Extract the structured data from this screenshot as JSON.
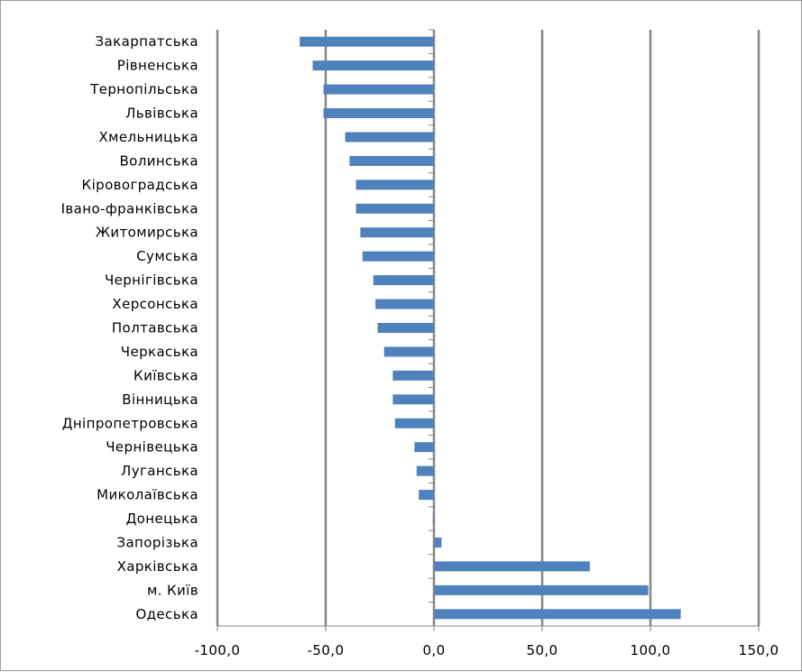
{
  "chart_data": {
    "type": "bar",
    "orientation": "horizontal",
    "title": "",
    "xlabel": "",
    "ylabel": "",
    "categories": [
      "Закарпатська",
      "Рівненська",
      "Тернопільська",
      "Львівська",
      "Хмельницька",
      "Волинська",
      "Кіровоградська",
      "Івано-франківська",
      "Житомирська",
      "Сумська",
      "Чернігівська",
      "Херсонська",
      "Полтавська",
      "Черкаська",
      "Київська",
      "Вінницька",
      "Дніпропетровська",
      "Чернівецька",
      "Луганська",
      "Миколаївська",
      "Донецька",
      "Запорізька",
      "Харківська",
      "м. Київ",
      "Одеська"
    ],
    "values": [
      -62,
      -56,
      -51,
      -51,
      -41,
      -39,
      -36,
      -36,
      -34,
      -33,
      -28,
      -27,
      -26,
      -23,
      -19,
      -19,
      -18,
      -9,
      -8,
      -7,
      -0.5,
      3.5,
      72,
      99,
      114
    ],
    "xlim": [
      -100,
      150
    ],
    "xticks": [
      -100,
      -50,
      0,
      50,
      100,
      150
    ],
    "xtick_labels": [
      "-100,0",
      "-50,0",
      "0,0",
      "50,0",
      "100,0",
      "150,0"
    ],
    "grid": "vertical",
    "legend": "none",
    "bar_color": "#4f81bd",
    "grid_color": "#868686"
  }
}
